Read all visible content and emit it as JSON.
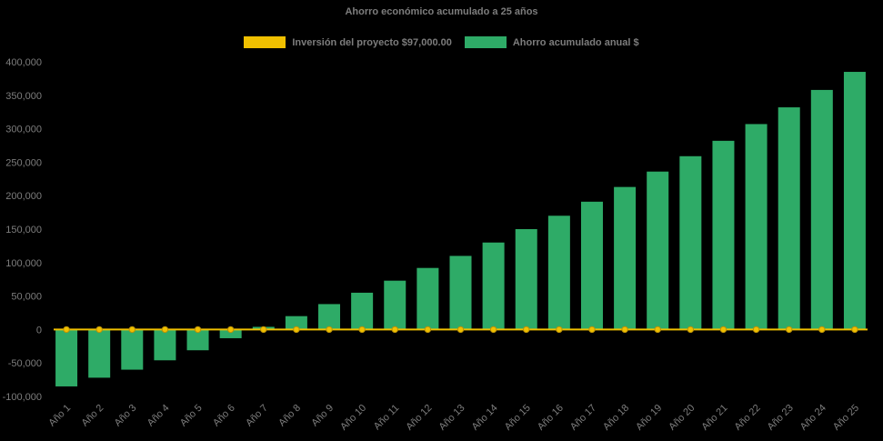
{
  "title": "Ahorro económico acumulado a 25 años",
  "legend": [
    {
      "label": "Inversión del proyecto $97,000.00",
      "color": "#F0C000"
    },
    {
      "label": "Ahorro acumulado anual $",
      "color": "#2EAB67"
    }
  ],
  "chart_data": {
    "type": "bar",
    "title": "Ahorro económico acumulado a 25 años",
    "categories": [
      "Año 1",
      "Año 2",
      "Año 3",
      "Año 4",
      "Año 5",
      "Año 6",
      "Año 7",
      "Año 8",
      "Año 9",
      "Año 10",
      "Año 11",
      "Año 12",
      "Año 13",
      "Año 14",
      "Año 15",
      "Año 16",
      "Año 17",
      "Año 18",
      "Año 19",
      "Año 20",
      "Año 21",
      "Año 22",
      "Año 23",
      "Año 24",
      "Año 25"
    ],
    "series": [
      {
        "name": "Inversión del proyecto $97,000.00",
        "type": "line",
        "color": "#F0C000",
        "marker_stroke": "#BB9107",
        "values": [
          0,
          0,
          0,
          0,
          0,
          0,
          0,
          0,
          0,
          0,
          0,
          0,
          0,
          0,
          0,
          0,
          0,
          0,
          0,
          0,
          0,
          0,
          0,
          0,
          0
        ]
      },
      {
        "name": "Ahorro acumulado anual $",
        "type": "bar",
        "color": "#2EAB67",
        "values": [
          -85000,
          -72000,
          -60000,
          -46000,
          -31000,
          -13000,
          4000,
          20000,
          38000,
          55000,
          73000,
          92000,
          110000,
          130000,
          150000,
          170000,
          191000,
          213000,
          236000,
          259000,
          282000,
          307000,
          332000,
          358000,
          385000
        ]
      }
    ],
    "ylim": [
      -100000,
      400000
    ],
    "yticks": {
      "values": [
        400000,
        350000,
        300000,
        250000,
        200000,
        150000,
        100000,
        50000,
        0,
        -50000,
        -100000
      ],
      "labels": [
        "400,000",
        "350,000",
        "300,000",
        "250,000",
        "200,000",
        "150,000",
        "100,000",
        "50,000",
        "0",
        "-50,000",
        "-100,000"
      ]
    },
    "grid": false,
    "legend_position": "top",
    "background": "#000000",
    "text_color": "#7D7D7D"
  }
}
